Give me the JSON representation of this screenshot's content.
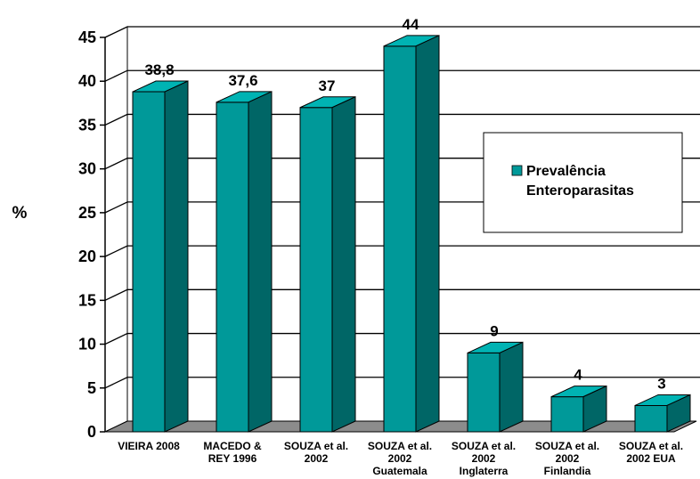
{
  "chart_data": {
    "type": "bar",
    "title": "",
    "xlabel": "",
    "ylabel": "%",
    "ylim": [
      0,
      45
    ],
    "yticks": [
      0,
      5,
      10,
      15,
      20,
      25,
      30,
      35,
      40,
      45
    ],
    "grid": true,
    "legend_position": "right",
    "categories": [
      [
        "VIEIRA 2008"
      ],
      [
        "MACEDO &",
        "REY 1996"
      ],
      [
        "SOUZA et al.",
        "2002"
      ],
      [
        "SOUZA et al.",
        "2002",
        "Guatemala"
      ],
      [
        "SOUZA et al.",
        "2002",
        "Inglaterra"
      ],
      [
        "SOUZA et al.",
        "2002",
        "Finlandia"
      ],
      [
        "SOUZA et al.",
        "2002 EUA"
      ]
    ],
    "series": [
      {
        "name": "Prevalência Enteroparasitas",
        "legend_lines": [
          "Prevalência",
          "Enteroparasitas"
        ],
        "values": [
          38.8,
          37.6,
          37,
          44,
          9,
          4,
          3
        ],
        "labels": [
          "38,8",
          "37,6",
          "37",
          "44",
          "9",
          "4",
          "3"
        ]
      }
    ],
    "colors": {
      "front": "#009999",
      "top": "#00b3b3",
      "side": "#006666",
      "floor": "#8c8c8c",
      "wall": "#ffffff",
      "grid": "#000000"
    }
  }
}
